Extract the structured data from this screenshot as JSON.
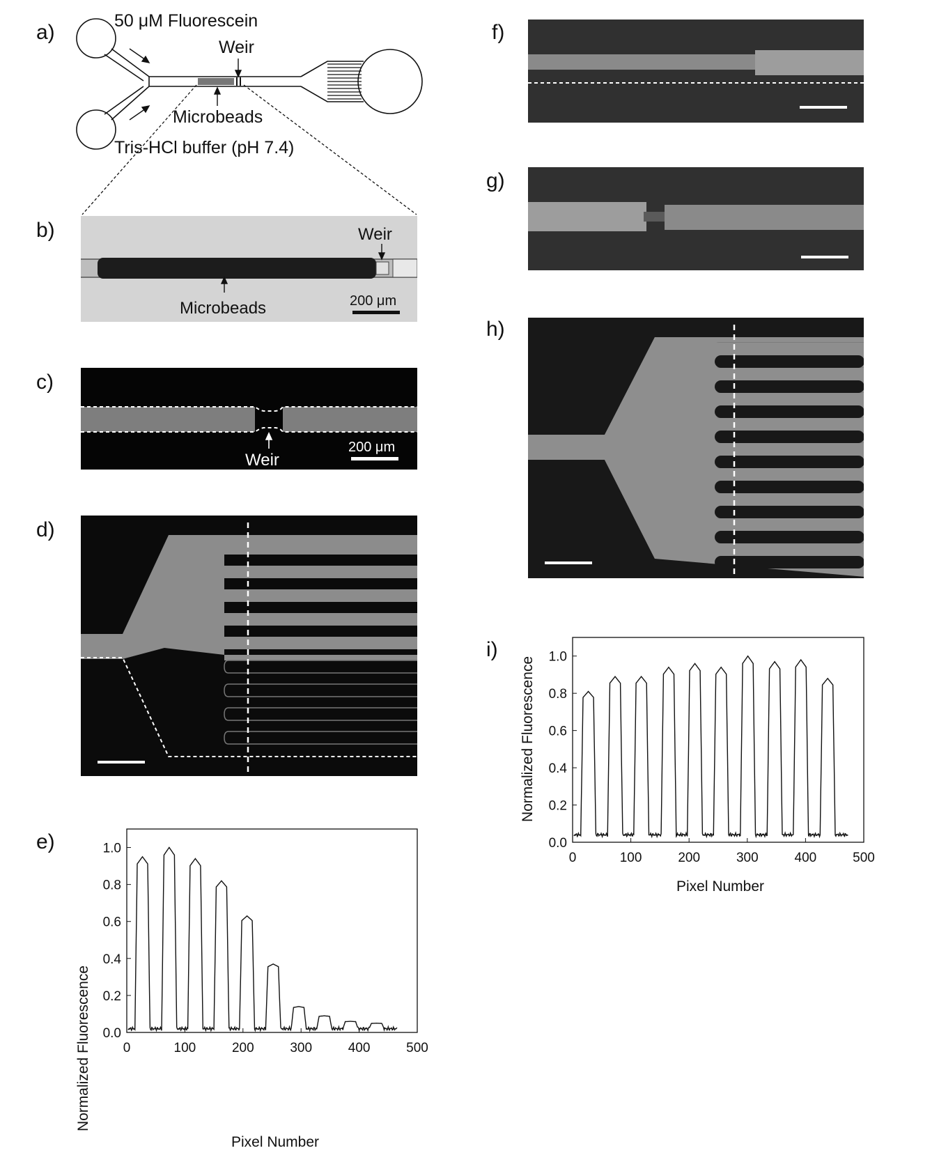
{
  "panels": {
    "a": "a)",
    "b": "b)",
    "c": "c)",
    "d": "d)",
    "e": "e)",
    "f": "f)",
    "g": "g)",
    "h": "h)",
    "i": "i)"
  },
  "schematic": {
    "fluorescein": "50 μM Fluorescein",
    "weir": "Weir",
    "microbeads": "Microbeads",
    "buffer": "Tris-HCl buffer (pH 7.4)"
  },
  "micrograph_b": {
    "weir": "Weir",
    "microbeads": "Microbeads",
    "scale": "200 μm"
  },
  "micrograph_c": {
    "weir": "Weir",
    "scale": "200 μm"
  },
  "chart_data": [
    {
      "panel": "e",
      "type": "line",
      "xlabel": "Pixel Number",
      "ylabel": "Normalized Fluorescence",
      "xlim": [
        0,
        500
      ],
      "ylim": [
        0,
        1.1
      ],
      "xticks": [
        "0",
        "100",
        "200",
        "300",
        "400",
        "500"
      ],
      "yticks": [
        "0.0",
        "0.2",
        "0.4",
        "0.6",
        "0.8",
        "1.0"
      ],
      "peaks": [
        {
          "center": 27,
          "height": 0.95
        },
        {
          "center": 73,
          "height": 1.0
        },
        {
          "center": 118,
          "height": 0.94
        },
        {
          "center": 163,
          "height": 0.82
        },
        {
          "center": 207,
          "height": 0.63
        },
        {
          "center": 252,
          "height": 0.37
        },
        {
          "center": 296,
          "height": 0.14
        },
        {
          "center": 340,
          "height": 0.09
        },
        {
          "center": 385,
          "height": 0.06
        },
        {
          "center": 430,
          "height": 0.05
        }
      ],
      "baseline": 0.02
    },
    {
      "panel": "i",
      "type": "line",
      "xlabel": "Pixel Number",
      "ylabel": "Normalized Fluorescence",
      "xlim": [
        0,
        500
      ],
      "ylim": [
        0,
        1.1
      ],
      "xticks": [
        "0",
        "100",
        "200",
        "300",
        "400",
        "500"
      ],
      "yticks": [
        "0.0",
        "0.2",
        "0.4",
        "0.6",
        "0.8",
        "1.0"
      ],
      "peaks": [
        {
          "center": 27,
          "height": 0.81
        },
        {
          "center": 73,
          "height": 0.89
        },
        {
          "center": 118,
          "height": 0.89
        },
        {
          "center": 165,
          "height": 0.94
        },
        {
          "center": 210,
          "height": 0.96
        },
        {
          "center": 255,
          "height": 0.94
        },
        {
          "center": 301,
          "height": 1.0
        },
        {
          "center": 347,
          "height": 0.97
        },
        {
          "center": 392,
          "height": 0.98
        },
        {
          "center": 438,
          "height": 0.88
        }
      ],
      "baseline": 0.04
    }
  ]
}
